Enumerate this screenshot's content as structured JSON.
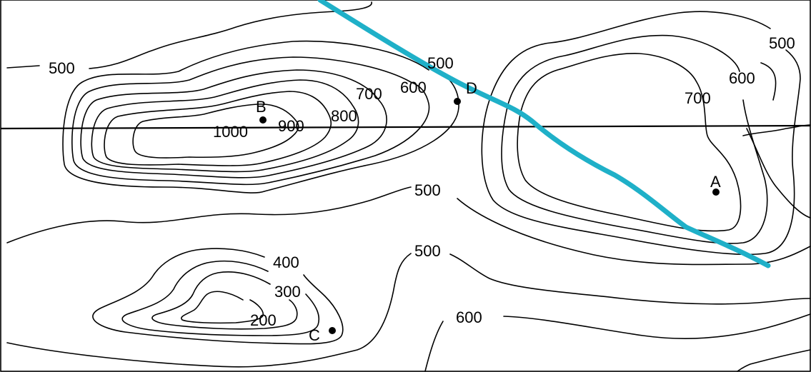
{
  "contour_labels": {
    "nw_500": "500",
    "mid_500": "500",
    "mid_600": "600",
    "mid_700": "700",
    "mid_800": "800",
    "mid_900": "900",
    "mid_1000": "1000",
    "e_500": "500",
    "e_600": "600",
    "e_700": "700",
    "c_500": "500",
    "s_400": "400",
    "s_300": "300",
    "s_200": "200",
    "s_500": "500",
    "s_600": "600"
  },
  "points": {
    "A": "A",
    "B": "B",
    "C": "C",
    "D": "D"
  },
  "colors": {
    "route": "#1fb0c8",
    "contour": "#000000"
  }
}
